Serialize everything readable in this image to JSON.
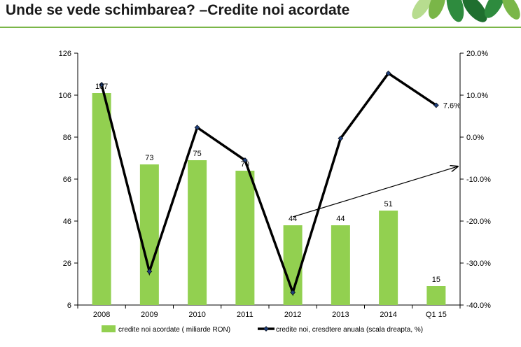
{
  "slide": {
    "title": "Unde se vede schimbarea? –Credite noi acordate"
  },
  "colors": {
    "bar": "#92d050",
    "line": "#000000",
    "accent": "#7ab648"
  },
  "chart_data": {
    "type": "bar",
    "categories": [
      "2008",
      "2009",
      "2010",
      "2011",
      "2012",
      "2013",
      "2014",
      "Q1 15"
    ],
    "series": [
      {
        "name": "credite noi acordate ( miliarde RON)",
        "type": "bar",
        "axis": "left",
        "values": [
          107,
          73,
          75,
          70,
          44,
          44,
          51,
          15
        ],
        "labels": [
          "107",
          "73",
          "75",
          "70",
          "44",
          "44",
          "51",
          "15"
        ]
      },
      {
        "name": "credite noi, cresdtere anuala (scala dreapta, %)",
        "type": "line",
        "axis": "right",
        "values": [
          12.5,
          -32,
          2.3,
          -5.5,
          -37,
          -0.3,
          15.2,
          7.6
        ],
        "end_label": "7.6%"
      }
    ],
    "ylim": [
      6,
      126
    ],
    "y_ticks": [
      "126",
      "106",
      "86",
      "66",
      "46",
      "26",
      "6"
    ],
    "y2lim": [
      -40,
      20
    ],
    "y2_ticks": [
      "20.0%",
      "10.0%",
      "0.0%",
      "-10.0%",
      "-20.0%",
      "-30.0%",
      "-40.0%"
    ],
    "trend_arrow": {
      "from": {
        "x": "2012",
        "y2": -19
      },
      "to": {
        "x": "Q1 15",
        "y2": -7
      }
    },
    "grid": false,
    "legend_position": "bottom"
  }
}
